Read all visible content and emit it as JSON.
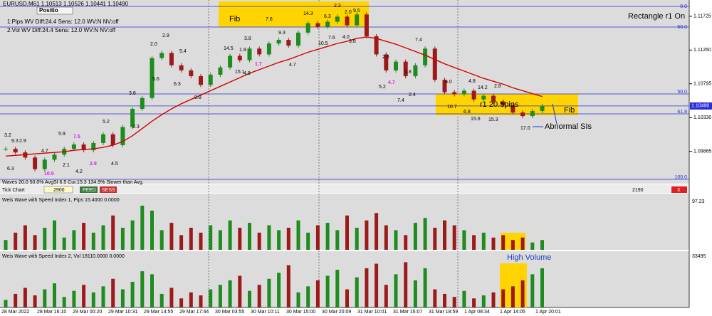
{
  "header": {
    "symbol": "EURUSD,M61  1.10513 1.10526 1.10441 1.10490",
    "button": "Positio",
    "info1": "1:Pips WV Diff:24.4 Sens: 12.0 WV:N NV:off",
    "info2": "2:Vol  WV Diff:24.4 Sens: 12.0 WV:N NV:off"
  },
  "annotations": {
    "rect_status": "Rectangle r1 On",
    "fib_top": "Fib",
    "fib_right": "Fib",
    "r1": "r1 20.5pips",
    "abnormal": "Abnormal SIs",
    "high_volume": "High Volume"
  },
  "fib_levels": [
    "0.0",
    "50.0",
    "50.0",
    "61.8",
    "100.0"
  ],
  "wave_labels": [
    "3.2",
    "9.3",
    "2.9",
    "4.7",
    "6.3",
    "10.5",
    "5.9",
    "7.5",
    "2.1",
    "4.2",
    "2.9",
    "5.2",
    "4.5",
    "3.8",
    "2.3",
    "2.9",
    "2.0",
    "5.6",
    "5.4",
    "6.3",
    "9.8",
    "14.5",
    "15.1",
    "1.7",
    "4.9",
    "1.9",
    "3.8",
    "7.6",
    "9.3",
    "4.7",
    "14.3",
    "10.5",
    "6.3",
    "2.0",
    "9.5",
    "7.6",
    "4.0",
    "3.8",
    "2.2",
    "2.6",
    "1.8",
    "7.4",
    "4.7",
    "5.2",
    "2.4",
    "7.4",
    "10.7",
    "6.8",
    "6.0",
    "4.8",
    "14.2",
    "2.8",
    "15.6",
    "15.3",
    "17.0"
  ],
  "status": "Waves 20.0 50.0% AvgSI 6.5 Cur.15.3 134.9% Slower than Avg.",
  "toolbar": {
    "tick_chart": "Tick Chart",
    "count": "2900",
    "feed": "FEED",
    "sess": "SESS",
    "right_count": "2190",
    "close": "X"
  },
  "price_axis": {
    "ylim": [
      1.0945,
      1.119
    ],
    "yticks": [
      {
        "value": 1.11725,
        "label": "1.11725"
      },
      {
        "value": 1.1126,
        "label": "1.11260"
      },
      {
        "value": 1.10795,
        "label": "1.10795"
      },
      {
        "value": 1.1033,
        "label": "1.10330"
      },
      {
        "value": 1.09865,
        "label": "1.09865"
      }
    ],
    "current": {
      "value": 1.1049,
      "label": "1.10490"
    }
  },
  "candles": {
    "up_color": "#1e8c1e",
    "down_color": "#9c1a1a",
    "ma_color": "#d40000",
    "closes": [
      1.099,
      1.0985,
      1.0978,
      1.0962,
      1.0975,
      1.0982,
      1.099,
      1.0996,
      1.0988,
      1.0998,
      1.101,
      1.0995,
      1.102,
      1.1045,
      1.106,
      1.1115,
      1.1122,
      1.1105,
      1.1098,
      1.109,
      1.1078,
      1.1092,
      1.1102,
      1.1118,
      1.1112,
      1.1128,
      1.112,
      1.1135,
      1.114,
      1.1132,
      1.115,
      1.1163,
      1.1158,
      1.1165,
      1.1172,
      1.116,
      1.1175,
      1.1145,
      1.112,
      1.1098,
      1.111,
      1.109,
      1.1105,
      1.1128,
      1.1085,
      1.1068,
      1.1065,
      1.107,
      1.1058,
      1.1063,
      1.1055,
      1.105,
      1.104,
      1.1035,
      1.1042,
      1.1049
    ],
    "ma": [
      1.098,
      1.0981,
      1.0982,
      1.0983,
      1.0984,
      1.0985,
      1.0986,
      1.0988,
      1.0989,
      1.099,
      1.0992,
      1.0995,
      1.1,
      1.1008,
      1.1018,
      1.1028,
      1.1037,
      1.1045,
      1.1052,
      1.1058,
      1.1064,
      1.107,
      1.1076,
      1.1082,
      1.1088,
      1.1094,
      1.1099,
      1.1104,
      1.1109,
      1.1113,
      1.1118,
      1.1123,
      1.1127,
      1.1131,
      1.1135,
      1.1138,
      1.1142,
      1.1144,
      1.1142,
      1.1138,
      1.1134,
      1.1129,
      1.1124,
      1.1119,
      1.1113,
      1.1107,
      1.1102,
      1.1097,
      1.1092,
      1.1087,
      1.1083,
      1.1079,
      1.1074,
      1.107,
      1.1066,
      1.1062
    ]
  },
  "panel1": {
    "title": "Weis Wave with Speed Index 1, Pips 15.4000 0.0000",
    "ylim": [
      0,
      97.23
    ],
    "values": [
      20,
      35,
      50,
      30,
      45,
      60,
      25,
      40,
      55,
      35,
      50,
      70,
      45,
      60,
      90,
      80,
      40,
      55,
      30,
      45,
      35,
      50,
      40,
      60,
      45,
      55,
      35,
      50,
      40,
      45,
      60,
      35,
      50,
      55,
      40,
      70,
      45,
      60,
      75,
      50,
      40,
      30,
      55,
      65,
      45,
      60,
      50,
      40,
      30,
      35,
      25,
      30,
      20,
      25,
      15,
      20
    ]
  },
  "panel2": {
    "title": "Weis Wave with Speed Index 2, Vol  18110.0000 0.0000",
    "ylim": [
      0,
      33495
    ],
    "values": [
      5000,
      9000,
      13000,
      8000,
      12000,
      16000,
      7000,
      11000,
      15000,
      10000,
      14000,
      19000,
      12000,
      17000,
      24000,
      22000,
      9000,
      13000,
      6000,
      10000,
      8000,
      12000,
      15000,
      18000,
      21000,
      11000,
      15000,
      19000,
      23000,
      28000,
      10000,
      14000,
      18000,
      21000,
      25000,
      12000,
      20000,
      26000,
      29000,
      15000,
      22000,
      30000,
      18000,
      26000,
      12000,
      9000,
      7000,
      11000,
      6000,
      8000,
      10000,
      12000,
      14000,
      18000,
      22000,
      26000
    ]
  },
  "x_labels": [
    "28 Mar 2022",
    "28 Mar 16:10",
    "29 Mar 00:20",
    "29 Mar 10:31",
    "29 Mar 14:55",
    "29 Mar 17:44",
    "30 Mar 03:55",
    "30 Mar 10:11",
    "30 Mar 15:00",
    "30 Mar 20:09",
    "31 Mar 10:01",
    "31 Mar 15:07",
    "31 Mar 18:59",
    "1 Apr 08:34",
    "1 Apr 14:05",
    "1 Apr 20:01"
  ]
}
